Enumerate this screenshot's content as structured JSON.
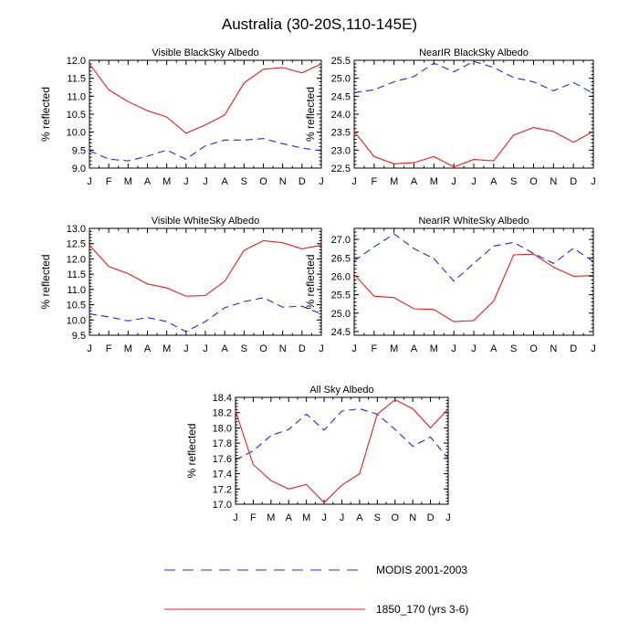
{
  "page_title": "Australia (30-20S,110-145E)",
  "legend": {
    "modis_label": "MODIS 2001-2003",
    "model_label": "1850_170 (yrs 3-6)",
    "modis_color": "#1f2bd6",
    "model_color": "#e02020"
  },
  "chart_data": [
    {
      "type": "line",
      "title": "Visible BlackSky Albedo",
      "ylabel": "% reflected",
      "categories": [
        "J",
        "F",
        "M",
        "A",
        "M",
        "J",
        "J",
        "A",
        "S",
        "O",
        "N",
        "D",
        "J"
      ],
      "ylim": [
        9.0,
        12.0
      ],
      "yticks": [
        "9.0",
        "9.5",
        "10.0",
        "10.5",
        "11.0",
        "11.5",
        "12.0"
      ],
      "series": [
        {
          "name": "MODIS 2001-2003",
          "values": [
            9.48,
            9.25,
            9.2,
            9.33,
            9.5,
            9.25,
            9.62,
            9.78,
            9.78,
            9.82,
            9.68,
            9.56,
            9.48
          ]
        },
        {
          "name": "1850_170 (yrs 3-6)",
          "values": [
            11.9,
            11.18,
            10.85,
            10.6,
            10.42,
            9.97,
            10.2,
            10.48,
            11.37,
            11.75,
            11.8,
            11.65,
            11.9
          ]
        }
      ]
    },
    {
      "type": "line",
      "title": "NearIR BlackSky Albedo",
      "ylabel": "% reflected",
      "categories": [
        "J",
        "F",
        "M",
        "A",
        "M",
        "J",
        "J",
        "A",
        "S",
        "O",
        "N",
        "D",
        "J"
      ],
      "ylim": [
        22.5,
        25.5
      ],
      "yticks": [
        "22.5",
        "23.0",
        "23.5",
        "24.0",
        "24.5",
        "25.0",
        "25.5"
      ],
      "series": [
        {
          "name": "MODIS 2001-2003",
          "values": [
            24.6,
            24.68,
            24.9,
            25.05,
            25.42,
            25.18,
            25.47,
            25.3,
            25.02,
            24.9,
            24.65,
            24.88,
            24.58
          ]
        },
        {
          "name": "1850_170 (yrs 3-6)",
          "values": [
            23.52,
            22.82,
            22.62,
            22.65,
            22.82,
            22.53,
            22.74,
            22.7,
            23.42,
            23.63,
            23.52,
            23.22,
            23.52
          ]
        }
      ]
    },
    {
      "type": "line",
      "title": "Visible WhiteSky Albedo",
      "ylabel": "% reflected",
      "categories": [
        "J",
        "F",
        "M",
        "A",
        "M",
        "J",
        "J",
        "A",
        "S",
        "O",
        "N",
        "D",
        "J"
      ],
      "ylim": [
        9.5,
        13.0
      ],
      "yticks": [
        "9.5",
        "10.0",
        "10.5",
        "11.0",
        "11.5",
        "12.0",
        "12.5",
        "13.0"
      ],
      "series": [
        {
          "name": "MODIS 2001-2003",
          "values": [
            10.2,
            10.1,
            9.97,
            10.08,
            9.95,
            9.62,
            9.95,
            10.4,
            10.6,
            10.73,
            10.42,
            10.45,
            10.2
          ]
        },
        {
          "name": "1850_170 (yrs 3-6)",
          "values": [
            12.45,
            11.75,
            11.52,
            11.18,
            11.05,
            10.78,
            10.8,
            11.27,
            12.28,
            12.6,
            12.53,
            12.33,
            12.45
          ]
        }
      ]
    },
    {
      "type": "line",
      "title": "NearIR WhiteSky Albedo",
      "ylabel": "% reflected",
      "categories": [
        "J",
        "F",
        "M",
        "A",
        "M",
        "J",
        "J",
        "A",
        "S",
        "O",
        "N",
        "D",
        "J"
      ],
      "ylim": [
        24.4,
        27.3
      ],
      "yticks": [
        "24.5",
        "25.0",
        "25.5",
        "26.0",
        "26.5",
        "27.0"
      ],
      "series": [
        {
          "name": "MODIS 2001-2003",
          "values": [
            26.42,
            26.8,
            27.15,
            26.75,
            26.48,
            25.87,
            26.35,
            26.82,
            26.92,
            26.62,
            26.35,
            26.76,
            26.4
          ]
        },
        {
          "name": "1850_170 (yrs 3-6)",
          "values": [
            26.05,
            25.46,
            25.42,
            25.12,
            25.1,
            24.77,
            24.8,
            25.33,
            26.58,
            26.6,
            26.25,
            26.0,
            26.02
          ]
        }
      ]
    },
    {
      "type": "line",
      "title": "All Sky Albedo",
      "ylabel": "% reflected",
      "categories": [
        "J",
        "F",
        "M",
        "A",
        "M",
        "J",
        "J",
        "A",
        "S",
        "O",
        "N",
        "D",
        "J"
      ],
      "ylim": [
        17.0,
        18.4
      ],
      "yticks": [
        "17.0",
        "17.2",
        "17.4",
        "17.6",
        "17.8",
        "18.0",
        "18.2",
        "18.4"
      ],
      "series": [
        {
          "name": "MODIS 2001-2003",
          "values": [
            17.58,
            17.7,
            17.9,
            17.98,
            18.18,
            17.97,
            18.22,
            18.25,
            18.18,
            17.98,
            17.76,
            17.88,
            17.6
          ]
        },
        {
          "name": "1850_170 (yrs 3-6)",
          "values": [
            18.22,
            17.52,
            17.31,
            17.2,
            17.26,
            17.02,
            17.25,
            17.4,
            18.18,
            18.37,
            18.25,
            18.0,
            18.25
          ]
        }
      ]
    }
  ]
}
